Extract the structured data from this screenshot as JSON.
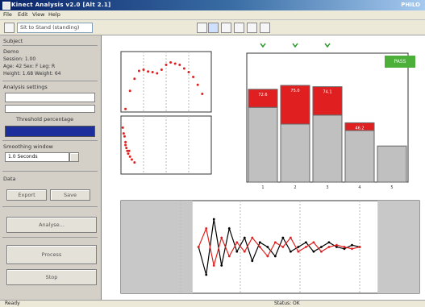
{
  "window": {
    "title": "Kinect Analysis v2.0 [Alt 2.1]",
    "brand": "PHILO"
  },
  "menu": [
    "File",
    "Edit",
    "View",
    "Help"
  ],
  "toolbar": {
    "selector_value": "Sit to Stand (standing)"
  },
  "left_panel": {
    "sections": [
      {
        "label": "Subject"
      },
      {
        "label": "Demo"
      },
      {
        "label": "Analysis settings"
      },
      {
        "label": "Smoothing window"
      },
      {
        "label": "Data"
      }
    ],
    "subject": {
      "lines": [
        "Session: 1.00",
        "Age: 42  Sex: F  Leg: R",
        "Height: 1.68  Weight: 64"
      ]
    },
    "threshold_label": "Threshold percentage",
    "window_value": "1.0 Seconds",
    "buttons": {
      "export": "Export",
      "save": "Save",
      "analyse": "Analyse...",
      "process": "Process",
      "stop": "Stop"
    }
  },
  "indicators": {
    "status_badge": "PASS"
  },
  "status_bar": {
    "left": "Ready",
    "middle": "Status: OK"
  },
  "chart_data": [
    {
      "type": "line",
      "panel": "top-left",
      "series": [
        {
          "color": "#e02020",
          "x": [
            0.05,
            0.1,
            0.15,
            0.2,
            0.25,
            0.3,
            0.35,
            0.4,
            0.45,
            0.5,
            0.55,
            0.6,
            0.65,
            0.7,
            0.75,
            0.8,
            0.85,
            0.9
          ],
          "y": [
            0.05,
            0.35,
            0.55,
            0.68,
            0.7,
            0.67,
            0.66,
            0.64,
            0.7,
            0.78,
            0.82,
            0.8,
            0.78,
            0.72,
            0.66,
            0.58,
            0.45,
            0.3
          ]
        }
      ],
      "xlim": [
        0,
        1
      ],
      "ylim": [
        0,
        1
      ],
      "grid": true
    },
    {
      "type": "scatter",
      "panel": "mid-left",
      "series": [
        {
          "color": "#e02020",
          "x": [
            0.02,
            0.03,
            0.04,
            0.05,
            0.05,
            0.06,
            0.07,
            0.08,
            0.09,
            0.1,
            0.12,
            0.15
          ],
          "y": [
            0.8,
            0.7,
            0.65,
            0.55,
            0.5,
            0.45,
            0.4,
            0.35,
            0.4,
            0.3,
            0.25,
            0.2
          ]
        }
      ],
      "xlim": [
        0,
        1
      ],
      "ylim": [
        0,
        1
      ],
      "grid": true
    },
    {
      "type": "bar",
      "panel": "top-right",
      "categories": [
        "1",
        "2",
        "3",
        "4",
        "5"
      ],
      "series": [
        {
          "name": "base",
          "color": "#c0c0c0",
          "values": [
            58,
            45,
            52,
            40,
            28
          ]
        },
        {
          "name": "excess",
          "color": "#e02020",
          "values": [
            14,
            30,
            22,
            6,
            0
          ]
        }
      ],
      "labels": [
        "72.6",
        "75.0",
        "74.1",
        "46.2",
        ""
      ],
      "ylim": [
        0,
        100
      ],
      "markers": [
        "1",
        "2",
        "3"
      ]
    },
    {
      "type": "line",
      "panel": "bottom",
      "shaded_regions": [
        [
          0.0,
          0.24
        ],
        [
          0.86,
          1.0
        ]
      ],
      "series": [
        {
          "name": "black",
          "color": "#000000",
          "values": [
            0.5,
            0.2,
            0.8,
            0.3,
            0.7,
            0.45,
            0.6,
            0.35,
            0.55,
            0.5,
            0.4,
            0.6,
            0.45,
            0.5,
            0.55,
            0.45,
            0.5,
            0.55,
            0.5,
            0.48,
            0.52,
            0.5
          ]
        },
        {
          "name": "red",
          "color": "#e02020",
          "values": [
            0.5,
            0.7,
            0.3,
            0.6,
            0.4,
            0.55,
            0.45,
            0.6,
            0.5,
            0.4,
            0.55,
            0.5,
            0.6,
            0.45,
            0.5,
            0.55,
            0.45,
            0.5,
            0.52,
            0.5,
            0.48,
            0.5
          ]
        }
      ],
      "xlim": [
        0,
        1
      ],
      "ylim": [
        0,
        1
      ],
      "grid": true
    }
  ]
}
